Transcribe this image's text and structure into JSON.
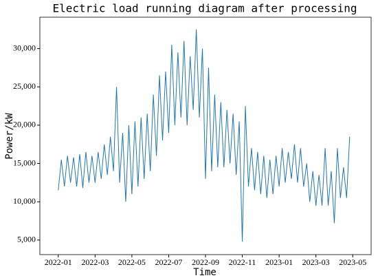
{
  "chart_data": {
    "type": "line",
    "title": "Electric load running diagram after processing",
    "x_label": "Time",
    "y_label": "Power/kW",
    "color": "#1f77b4",
    "x": [
      "2022-01",
      "2022-01",
      "2022-01",
      "2022-01",
      "2022-01",
      "2022-01",
      "2022-02",
      "2022-02",
      "2022-02",
      "2022-02",
      "2022-02",
      "2022-02",
      "2022-03",
      "2022-03",
      "2022-03",
      "2022-03",
      "2022-03",
      "2022-03",
      "2022-04",
      "2022-04",
      "2022-04",
      "2022-04",
      "2022-04",
      "2022-04",
      "2022-05",
      "2022-05",
      "2022-05",
      "2022-05",
      "2022-05",
      "2022-05",
      "2022-06",
      "2022-06",
      "2022-06",
      "2022-06",
      "2022-06",
      "2022-06",
      "2022-07",
      "2022-07",
      "2022-07",
      "2022-07",
      "2022-07",
      "2022-07",
      "2022-08",
      "2022-08",
      "2022-08",
      "2022-08",
      "2022-08",
      "2022-08",
      "2022-09",
      "2022-09",
      "2022-09",
      "2022-09",
      "2022-09",
      "2022-09",
      "2022-10",
      "2022-10",
      "2022-10",
      "2022-10",
      "2022-10",
      "2022-10",
      "2022-11",
      "2022-11",
      "2022-11",
      "2022-11",
      "2022-11",
      "2022-11",
      "2022-12",
      "2022-12",
      "2022-12",
      "2022-12",
      "2022-12",
      "2022-12",
      "2023-01",
      "2023-01",
      "2023-01",
      "2023-01",
      "2023-01",
      "2023-01",
      "2023-02",
      "2023-02",
      "2023-02",
      "2023-02",
      "2023-02",
      "2023-02",
      "2023-03",
      "2023-03",
      "2023-03",
      "2023-03",
      "2023-03",
      "2023-03",
      "2023-04",
      "2023-04",
      "2023-04",
      "2023-04",
      "2023-04",
      "2023-04"
    ],
    "values": [
      11500,
      15500,
      12000,
      16000,
      12500,
      15800,
      12000,
      16200,
      11800,
      16500,
      12500,
      16000,
      12500,
      16500,
      13000,
      17500,
      13500,
      18500,
      14000,
      25000,
      12500,
      19000,
      10000,
      20000,
      11000,
      20500,
      12000,
      21000,
      13000,
      21500,
      14000,
      24000,
      16000,
      26500,
      18000,
      27000,
      19000,
      30500,
      20000,
      29500,
      21000,
      31000,
      20000,
      29000,
      22000,
      32500,
      21000,
      30000,
      13000,
      27500,
      14000,
      24000,
      14500,
      23000,
      14500,
      22000,
      15000,
      21500,
      13500,
      20500,
      4800,
      22500,
      12000,
      17000,
      11500,
      16500,
      11000,
      16000,
      10500,
      15500,
      11000,
      16000,
      12000,
      17000,
      12500,
      16500,
      13000,
      17500,
      12500,
      17000,
      12000,
      15000,
      10000,
      14000,
      9500,
      13500,
      9500,
      17000,
      9500,
      14000,
      7200,
      17000,
      10500,
      14500,
      10500,
      18500
    ],
    "xlim": [
      "2021-12",
      "2023-06"
    ],
    "xticks": [
      "2022-01",
      "2022-03",
      "2022-05",
      "2022-07",
      "2022-09",
      "2022-11",
      "2023-01",
      "2023-03",
      "2023-05"
    ],
    "ylim": [
      3100,
      34100
    ],
    "yticks": [
      {
        "value": 5000,
        "label": "5,000"
      },
      {
        "value": 10000,
        "label": "10,000"
      },
      {
        "value": 15000,
        "label": "15,000"
      },
      {
        "value": 20000,
        "label": "20,000"
      },
      {
        "value": 25000,
        "label": "25,000"
      },
      {
        "value": 30000,
        "label": "30,000"
      }
    ]
  }
}
